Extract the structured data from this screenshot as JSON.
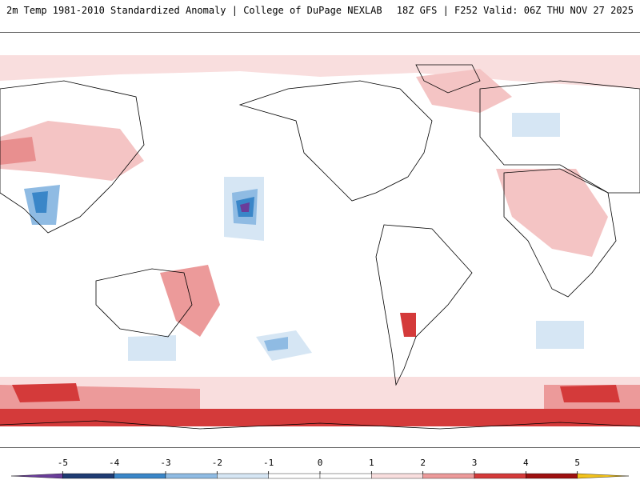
{
  "header": {
    "left_title": "2m Temp 1981-2010 Standardized Anomaly | College of DuPage NEXLAB",
    "right_title": "18Z GFS | F252 Valid: 06Z THU NOV 27 2025"
  },
  "legend": {
    "tick_labels": [
      "-5",
      "-4",
      "-3",
      "-2",
      "-1",
      "0",
      "1",
      "2",
      "3",
      "4",
      "5"
    ],
    "bins": [
      {
        "range": "< -5",
        "color": "#6a3d9a"
      },
      {
        "range": "-5 to -4",
        "color": "#1f3b73"
      },
      {
        "range": "-4 to -3",
        "color": "#3a86c8"
      },
      {
        "range": "-3 to -2",
        "color": "#8fbbe3"
      },
      {
        "range": "-2 to -1",
        "color": "#d6e6f4"
      },
      {
        "range": "-1 to 0",
        "color": "#ffffff"
      },
      {
        "range": "0 to 1",
        "color": "#ffffff"
      },
      {
        "range": "1 to 2",
        "color": "#f9dede"
      },
      {
        "range": "2 to 3",
        "color": "#ec9a9a"
      },
      {
        "range": "3 to 4",
        "color": "#d43a3a"
      },
      {
        "range": "4 to 5",
        "color": "#9e1010"
      },
      {
        "range": "> 5",
        "color": "#f2c21b"
      }
    ]
  },
  "map": {
    "ocean_color": "#ffffff",
    "coastline_color": "#000000"
  }
}
